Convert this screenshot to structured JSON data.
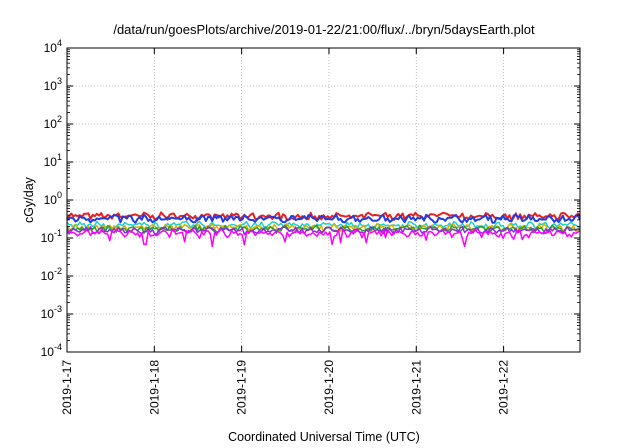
{
  "chart_data": {
    "type": "line",
    "title": "/data/run/goesPlots/archive/2019-01-22/21:00/flux/../bryn/5daysEarth.plot",
    "xlabel": "Coordinated Universal Time (UTC)",
    "ylabel": "cGy/day",
    "yscale": "log",
    "ylim": [
      0.0001,
      10000
    ],
    "y_ticks": [
      {
        "base": "10",
        "exp": "-4",
        "value": 0.0001
      },
      {
        "base": "10",
        "exp": "-3",
        "value": 0.001
      },
      {
        "base": "10",
        "exp": "-2",
        "value": 0.01
      },
      {
        "base": "10",
        "exp": "-1",
        "value": 0.1
      },
      {
        "base": "10",
        "exp": "0",
        "value": 1
      },
      {
        "base": "10",
        "exp": "1",
        "value": 10
      },
      {
        "base": "10",
        "exp": "2",
        "value": 100
      },
      {
        "base": "10",
        "exp": "3",
        "value": 1000
      },
      {
        "base": "10",
        "exp": "4",
        "value": 10000
      }
    ],
    "xlim": [
      "2019-01-17",
      "2019-01-22T21:00"
    ],
    "x_ticks": [
      "2019-1-17",
      "2019-1-18",
      "2019-1-19",
      "2019-1-20",
      "2019-1-21",
      "2019-1-22"
    ],
    "grid": true,
    "series": [
      {
        "color": "#e8201e",
        "mean": 0.38,
        "spike_min": 0.3
      },
      {
        "color": "#1f3de0",
        "mean": 0.33,
        "spike_min": 0.26
      },
      {
        "color": "#20d0c8",
        "mean": 0.22,
        "spike_min": 0.17
      },
      {
        "color": "#d8b200",
        "mean": 0.19,
        "spike_min": 0.16
      },
      {
        "color": "#28a028",
        "mean": 0.175,
        "spike_min": 0.15
      },
      {
        "color": "#8a2be2",
        "mean": 0.16,
        "spike_min": 0.13
      },
      {
        "color": "#ff00ff",
        "mean": 0.135,
        "spike_min": 0.065
      }
    ],
    "dips": [
      {
        "x": "2019-01-17T21:30",
        "value": 0.068
      },
      {
        "x": "2019-01-18T16:00",
        "value": 0.06
      },
      {
        "x": "2019-01-20T03:00",
        "value": 0.075
      },
      {
        "x": "2019-01-21T13:30",
        "value": 0.06
      }
    ]
  }
}
